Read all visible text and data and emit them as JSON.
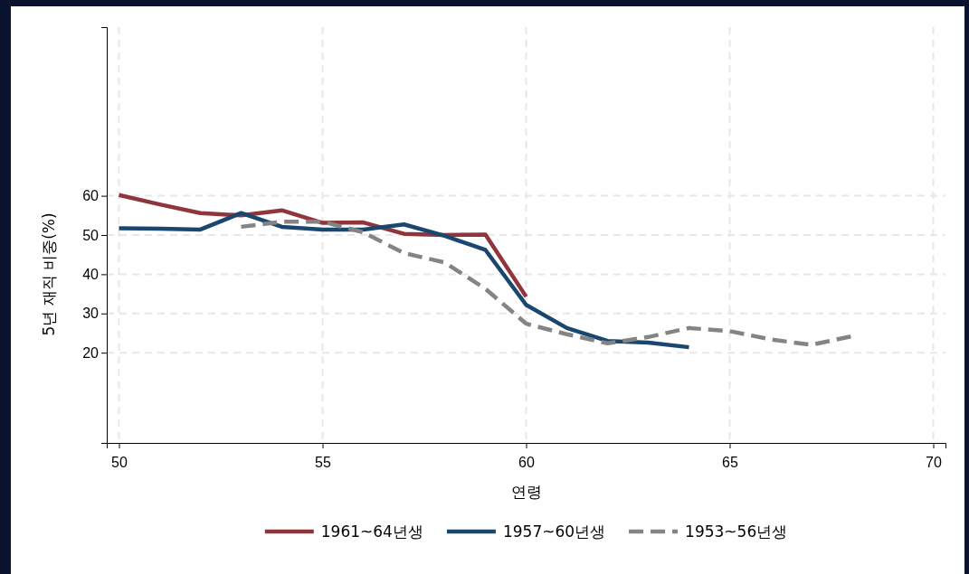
{
  "chart_data": {
    "type": "line",
    "xlabel": "연령",
    "ylabel": "5년 재직 비중(%)",
    "xlim": [
      49.7,
      70.3
    ],
    "xticks": [
      50,
      55,
      60,
      65,
      70
    ],
    "ylim": [
      -3,
      103
    ],
    "yticks": [
      20,
      30,
      40,
      50,
      60
    ],
    "grid": true,
    "legend": "bottom",
    "series": [
      {
        "name": "1961~64년생",
        "color": "#90353b",
        "line_style": "solid",
        "x": [
          50,
          51,
          52,
          53,
          54,
          55,
          56,
          57,
          58,
          59,
          60
        ],
        "values": [
          60.2,
          57.8,
          55.6,
          55.0,
          56.3,
          53.1,
          53.2,
          50.3,
          50.0,
          50.1,
          34.3
        ]
      },
      {
        "name": "1957~60년생",
        "color": "#1a476f",
        "line_style": "solid",
        "x": [
          50,
          51,
          52,
          53,
          54,
          55,
          56,
          57,
          58,
          59,
          60,
          61,
          62,
          63,
          64
        ],
        "values": [
          51.7,
          51.6,
          51.4,
          55.6,
          52.1,
          51.4,
          51.4,
          52.7,
          49.8,
          46.2,
          32.2,
          26.3,
          23.0,
          22.6,
          21.4
        ]
      },
      {
        "name": "1953~56년생",
        "color": "#848484",
        "line_style": "dashed",
        "x": [
          53,
          54,
          55,
          56,
          57,
          58,
          59,
          60,
          61,
          62,
          63,
          64,
          65,
          66,
          67,
          68
        ],
        "values": [
          52.1,
          53.4,
          53.4,
          50.7,
          45.4,
          43.0,
          36.3,
          27.4,
          24.7,
          22.4,
          24.0,
          26.3,
          25.5,
          23.4,
          22.0,
          24.2
        ]
      }
    ]
  }
}
